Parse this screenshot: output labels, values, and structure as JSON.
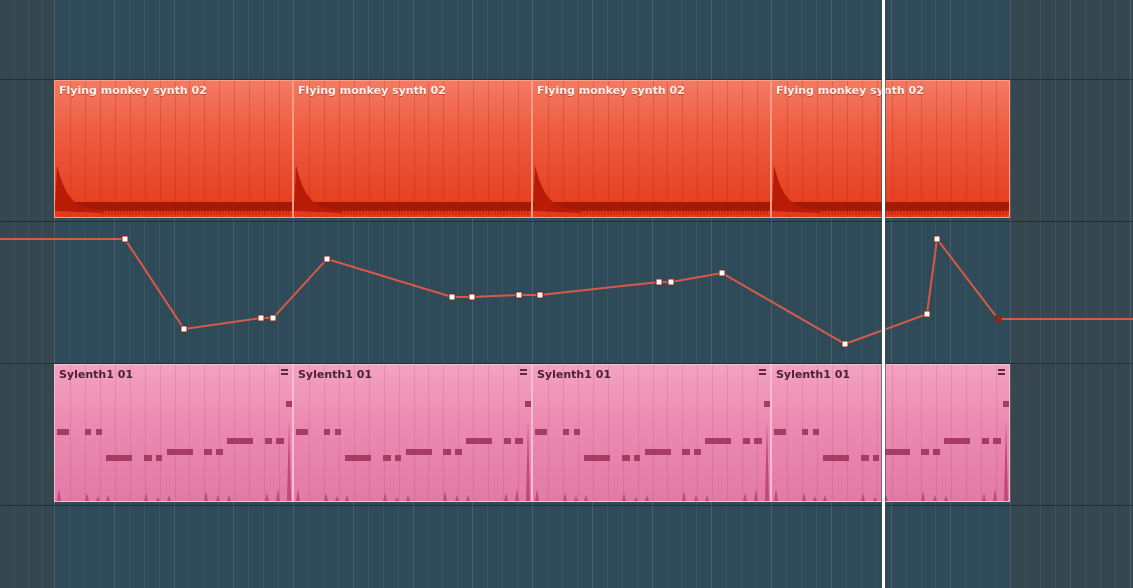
{
  "tracks": {
    "audio": {
      "clip_label": "Flying monkey synth 02",
      "clips": [
        "Flying monkey synth 02",
        "Flying monkey synth 02",
        "Flying monkey synth 02",
        "Flying monkey synth 02"
      ]
    },
    "pattern": {
      "clip_label": "Sylenth1 01",
      "clips": [
        "Sylenth1 01",
        "Sylenth1 01",
        "Sylenth1 01",
        "Sylenth1 01"
      ]
    }
  },
  "automation": {
    "color": "#d85a46",
    "point_color": "#ffffff"
  },
  "colors": {
    "background": "#2f4a58",
    "audio_clip": "#ee5a3e",
    "pattern_clip": "#eb8ab0",
    "note": "#a83b63",
    "playhead": "#ffffff"
  }
}
